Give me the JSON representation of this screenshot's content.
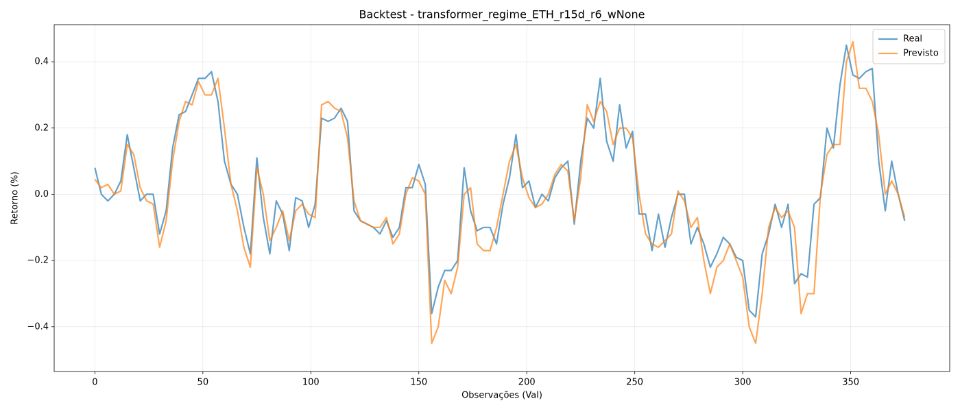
{
  "chart_data": {
    "type": "line",
    "title": "Backtest - transformer_regime_ETH_r15d_r6_wNone",
    "x_label": "Observações (Val)",
    "y_label": "Retorno (%)",
    "x": [
      0,
      3,
      6,
      9,
      12,
      15,
      18,
      21,
      24,
      27,
      30,
      33,
      36,
      39,
      42,
      45,
      48,
      51,
      54,
      57,
      60,
      63,
      66,
      69,
      72,
      75,
      78,
      81,
      84,
      87,
      90,
      93,
      96,
      99,
      102,
      105,
      108,
      111,
      114,
      117,
      120,
      123,
      126,
      129,
      132,
      135,
      138,
      141,
      144,
      147,
      150,
      153,
      156,
      159,
      162,
      165,
      168,
      171,
      174,
      177,
      180,
      183,
      186,
      189,
      192,
      195,
      198,
      201,
      204,
      207,
      210,
      213,
      216,
      219,
      222,
      225,
      228,
      231,
      234,
      237,
      240,
      243,
      246,
      249,
      252,
      255,
      258,
      261,
      264,
      267,
      270,
      273,
      276,
      279,
      282,
      285,
      288,
      291,
      294,
      297,
      300,
      303,
      306,
      309,
      312,
      315,
      318,
      321,
      324,
      327,
      330,
      333,
      336,
      339,
      342,
      345,
      348,
      351,
      354,
      357,
      360,
      363,
      366,
      369,
      372,
      375
    ],
    "series": [
      {
        "name": "Real",
        "color": "#1f77b4",
        "values": [
          0.08,
          0.0,
          -0.02,
          0.0,
          0.04,
          0.18,
          0.08,
          -0.02,
          0.0,
          0.0,
          -0.12,
          -0.05,
          0.14,
          0.24,
          0.25,
          0.3,
          0.35,
          0.35,
          0.37,
          0.28,
          0.1,
          0.03,
          0.0,
          -0.1,
          -0.18,
          0.11,
          -0.07,
          -0.18,
          -0.02,
          -0.06,
          -0.17,
          -0.01,
          -0.02,
          -0.1,
          -0.03,
          0.23,
          0.22,
          0.23,
          0.26,
          0.22,
          -0.05,
          -0.08,
          -0.09,
          -0.1,
          -0.12,
          -0.08,
          -0.13,
          -0.1,
          0.02,
          0.02,
          0.09,
          0.03,
          -0.36,
          -0.28,
          -0.23,
          -0.23,
          -0.2,
          0.08,
          -0.05,
          -0.11,
          -0.1,
          -0.1,
          -0.15,
          -0.03,
          0.05,
          0.18,
          0.02,
          0.04,
          -0.04,
          0.0,
          -0.02,
          0.05,
          0.08,
          0.1,
          -0.09,
          0.1,
          0.23,
          0.2,
          0.35,
          0.16,
          0.1,
          0.27,
          0.14,
          0.19,
          -0.06,
          -0.06,
          -0.17,
          -0.06,
          -0.16,
          -0.07,
          0.0,
          0.0,
          -0.15,
          -0.1,
          -0.15,
          -0.22,
          -0.18,
          -0.13,
          -0.15,
          -0.19,
          -0.2,
          -0.35,
          -0.37,
          -0.18,
          -0.12,
          -0.03,
          -0.1,
          -0.03,
          -0.27,
          -0.24,
          -0.25,
          -0.03,
          -0.01,
          0.2,
          0.14,
          0.33,
          0.45,
          0.36,
          0.35,
          0.37,
          0.38,
          0.1,
          -0.05,
          0.1,
          0.0,
          -0.08
        ]
      },
      {
        "name": "Previsto",
        "color": "#ff7f0e",
        "values": [
          0.045,
          0.02,
          0.03,
          0.0,
          0.01,
          0.15,
          0.12,
          0.02,
          -0.02,
          -0.03,
          -0.16,
          -0.08,
          0.1,
          0.22,
          0.28,
          0.27,
          0.34,
          0.3,
          0.3,
          0.35,
          0.2,
          0.03,
          -0.05,
          -0.16,
          -0.22,
          0.08,
          0.0,
          -0.14,
          -0.1,
          -0.05,
          -0.14,
          -0.05,
          -0.03,
          -0.06,
          -0.07,
          0.27,
          0.28,
          0.26,
          0.25,
          0.17,
          -0.02,
          -0.08,
          -0.09,
          -0.1,
          -0.1,
          -0.07,
          -0.15,
          -0.12,
          0.0,
          0.05,
          0.04,
          0.0,
          -0.45,
          -0.4,
          -0.26,
          -0.3,
          -0.22,
          0.0,
          0.02,
          -0.15,
          -0.17,
          -0.17,
          -0.1,
          0.0,
          0.1,
          0.15,
          0.05,
          -0.01,
          -0.04,
          -0.03,
          0.0,
          0.06,
          0.09,
          0.07,
          -0.08,
          0.05,
          0.27,
          0.22,
          0.28,
          0.25,
          0.15,
          0.2,
          0.2,
          0.17,
          0.0,
          -0.12,
          -0.15,
          -0.16,
          -0.14,
          -0.12,
          0.01,
          -0.02,
          -0.1,
          -0.07,
          -0.2,
          -0.3,
          -0.22,
          -0.2,
          -0.15,
          -0.2,
          -0.25,
          -0.4,
          -0.45,
          -0.3,
          -0.1,
          -0.04,
          -0.07,
          -0.05,
          -0.1,
          -0.36,
          -0.3,
          -0.3,
          0.0,
          0.12,
          0.15,
          0.15,
          0.4,
          0.46,
          0.32,
          0.32,
          0.28,
          0.18,
          0.0,
          0.04,
          0.0,
          -0.07
        ]
      }
    ],
    "xlim": [
      -18.85,
      395.85
    ],
    "ylim": [
      -0.535,
      0.512
    ],
    "xticks": [
      0,
      50,
      100,
      150,
      200,
      250,
      300,
      350
    ],
    "yticks": [
      {
        "value": -0.4,
        "label": "−0.4"
      },
      {
        "value": -0.2,
        "label": "−0.2"
      },
      {
        "value": 0,
        "label": "0.0"
      },
      0.2,
      0.4
    ],
    "grid": true,
    "legend": "upper right"
  }
}
